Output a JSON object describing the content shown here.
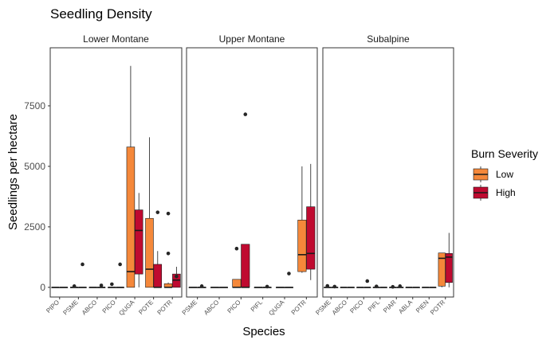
{
  "chart_data": {
    "type": "boxplot",
    "title": "Seedling Density",
    "xlabel": "Species",
    "ylabel": "Seedlings per hectare",
    "ylim": [
      -400,
      9900
    ],
    "yticks": [
      0,
      2500,
      5000,
      7500
    ],
    "ytick_labels": [
      "0",
      "2500",
      "5000",
      "7500"
    ],
    "grid": false,
    "legend": {
      "title": "Burn Severity",
      "position": "right",
      "entries": [
        {
          "label": "Low",
          "color": "#F5883A"
        },
        {
          "label": "High",
          "color": "#BF0A30"
        }
      ]
    },
    "panels": [
      {
        "name": "Lower Montane",
        "categories": [
          "PIPO",
          "PSME",
          "ABCO",
          "PICO",
          "QUGA",
          "POTE",
          "POTR"
        ],
        "boxes": [
          {
            "species": "PIPO",
            "severity": "Low",
            "min": 0,
            "q1": 0,
            "median": 0,
            "q3": 0,
            "max": 0,
            "outliers": []
          },
          {
            "species": "PIPO",
            "severity": "High",
            "min": 0,
            "q1": 0,
            "median": 0,
            "q3": 0,
            "max": 0,
            "outliers": []
          },
          {
            "species": "PSME",
            "severity": "Low",
            "min": 0,
            "q1": 0,
            "median": 0,
            "q3": 0,
            "max": 0,
            "outliers": [
              50
            ]
          },
          {
            "species": "PSME",
            "severity": "High",
            "min": 0,
            "q1": 0,
            "median": 0,
            "q3": 0,
            "max": 0,
            "outliers": [
              950
            ]
          },
          {
            "species": "ABCO",
            "severity": "Low",
            "min": 0,
            "q1": 0,
            "median": 0,
            "q3": 0,
            "max": 0,
            "outliers": []
          },
          {
            "species": "ABCO",
            "severity": "High",
            "min": 0,
            "q1": 0,
            "median": 0,
            "q3": 0,
            "max": 0,
            "outliers": [
              80
            ]
          },
          {
            "species": "PICO",
            "severity": "Low",
            "min": 0,
            "q1": 0,
            "median": 0,
            "q3": 0,
            "max": 0,
            "outliers": [
              130
            ]
          },
          {
            "species": "PICO",
            "severity": "High",
            "min": 0,
            "q1": 0,
            "median": 0,
            "q3": 0,
            "max": 0,
            "outliers": [
              950
            ]
          },
          {
            "species": "QUGA",
            "severity": "Low",
            "min": 0,
            "q1": 0,
            "median": 650,
            "q3": 5800,
            "max": 9150,
            "outliers": []
          },
          {
            "species": "QUGA",
            "severity": "High",
            "min": 0,
            "q1": 550,
            "median": 2350,
            "q3": 3200,
            "max": 3900,
            "outliers": []
          },
          {
            "species": "POTE",
            "severity": "Low",
            "min": 0,
            "q1": 0,
            "median": 750,
            "q3": 2850,
            "max": 6200,
            "outliers": []
          },
          {
            "species": "POTE",
            "severity": "High",
            "min": 0,
            "q1": 0,
            "median": 0,
            "q3": 950,
            "max": 1500,
            "outliers": [
              3100
            ]
          },
          {
            "species": "POTR",
            "severity": "Low",
            "min": 0,
            "q1": 0,
            "median": 0,
            "q3": 150,
            "max": 200,
            "outliers": [
              1400,
              3050
            ]
          },
          {
            "species": "POTR",
            "severity": "High",
            "min": 0,
            "q1": 0,
            "median": 300,
            "q3": 550,
            "max": 850,
            "outliers": [
              450
            ]
          }
        ]
      },
      {
        "name": "Upper Montane",
        "categories": [
          "PSME",
          "ABCO",
          "PICO",
          "PIFL",
          "QUGA",
          "POTR"
        ],
        "boxes": [
          {
            "species": "PSME",
            "severity": "Low",
            "min": 0,
            "q1": 0,
            "median": 0,
            "q3": 0,
            "max": 0,
            "outliers": []
          },
          {
            "species": "PSME",
            "severity": "High",
            "min": 0,
            "q1": 0,
            "median": 0,
            "q3": 0,
            "max": 0,
            "outliers": [
              50
            ]
          },
          {
            "species": "ABCO",
            "severity": "Low",
            "min": 0,
            "q1": 0,
            "median": 0,
            "q3": 0,
            "max": 0,
            "outliers": []
          },
          {
            "species": "ABCO",
            "severity": "High",
            "min": 0,
            "q1": 0,
            "median": 0,
            "q3": 0,
            "max": 0,
            "outliers": []
          },
          {
            "species": "PICO",
            "severity": "Low",
            "min": 0,
            "q1": 0,
            "median": 0,
            "q3": 330,
            "max": 330,
            "outliers": [
              1600
            ]
          },
          {
            "species": "PICO",
            "severity": "High",
            "min": 0,
            "q1": 0,
            "median": 0,
            "q3": 1780,
            "max": 1780,
            "outliers": [
              7150
            ]
          },
          {
            "species": "PIFL",
            "severity": "Low",
            "min": 0,
            "q1": 0,
            "median": 0,
            "q3": 0,
            "max": 0,
            "outliers": []
          },
          {
            "species": "PIFL",
            "severity": "High",
            "min": 0,
            "q1": 0,
            "median": 0,
            "q3": 0,
            "max": 0,
            "outliers": [
              30
            ]
          },
          {
            "species": "QUGA",
            "severity": "Low",
            "min": 0,
            "q1": 0,
            "median": 0,
            "q3": 0,
            "max": 0,
            "outliers": []
          },
          {
            "species": "QUGA",
            "severity": "High",
            "min": 0,
            "q1": 0,
            "median": 0,
            "q3": 0,
            "max": 0,
            "outliers": [
              570
            ]
          },
          {
            "species": "POTR",
            "severity": "Low",
            "min": 600,
            "q1": 650,
            "median": 1350,
            "q3": 2780,
            "max": 5000,
            "outliers": []
          },
          {
            "species": "POTR",
            "severity": "High",
            "min": 300,
            "q1": 750,
            "median": 1400,
            "q3": 3330,
            "max": 5100,
            "outliers": []
          }
        ]
      },
      {
        "name": "Subalpine",
        "categories": [
          "PSME",
          "ABCO",
          "PICO",
          "PIFL",
          "PIAR",
          "ABLA",
          "PIEN",
          "POTR"
        ],
        "boxes": [
          {
            "species": "PSME",
            "severity": "Low",
            "min": 0,
            "q1": 0,
            "median": 0,
            "q3": 0,
            "max": 0,
            "outliers": [
              60
            ]
          },
          {
            "species": "PSME",
            "severity": "High",
            "min": 0,
            "q1": 0,
            "median": 0,
            "q3": 0,
            "max": 0,
            "outliers": [
              30
            ]
          },
          {
            "species": "ABCO",
            "severity": "Low",
            "min": 0,
            "q1": 0,
            "median": 0,
            "q3": 0,
            "max": 0,
            "outliers": []
          },
          {
            "species": "ABCO",
            "severity": "High",
            "min": 0,
            "q1": 0,
            "median": 0,
            "q3": 0,
            "max": 0,
            "outliers": []
          },
          {
            "species": "PICO",
            "severity": "Low",
            "min": 0,
            "q1": 0,
            "median": 0,
            "q3": 0,
            "max": 0,
            "outliers": []
          },
          {
            "species": "PICO",
            "severity": "High",
            "min": 0,
            "q1": 0,
            "median": 0,
            "q3": 0,
            "max": 0,
            "outliers": [
              260
            ]
          },
          {
            "species": "PIFL",
            "severity": "Low",
            "min": 0,
            "q1": 0,
            "median": 0,
            "q3": 0,
            "max": 0,
            "outliers": [
              40
            ]
          },
          {
            "species": "PIFL",
            "severity": "High",
            "min": 0,
            "q1": 0,
            "median": 0,
            "q3": 0,
            "max": 0,
            "outliers": []
          },
          {
            "species": "PIAR",
            "severity": "Low",
            "min": 0,
            "q1": 0,
            "median": 0,
            "q3": 0,
            "max": 0,
            "outliers": [
              20
            ]
          },
          {
            "species": "PIAR",
            "severity": "High",
            "min": 0,
            "q1": 0,
            "median": 0,
            "q3": 0,
            "max": 0,
            "outliers": [
              50
            ]
          },
          {
            "species": "ABLA",
            "severity": "Low",
            "min": 0,
            "q1": 0,
            "median": 0,
            "q3": 0,
            "max": 0,
            "outliers": []
          },
          {
            "species": "ABLA",
            "severity": "High",
            "min": 0,
            "q1": 0,
            "median": 0,
            "q3": 0,
            "max": 0,
            "outliers": []
          },
          {
            "species": "PIEN",
            "severity": "Low",
            "min": 0,
            "q1": 0,
            "median": 0,
            "q3": 0,
            "max": 0,
            "outliers": []
          },
          {
            "species": "PIEN",
            "severity": "High",
            "min": 0,
            "q1": 0,
            "median": 0,
            "q3": 0,
            "max": 0,
            "outliers": []
          },
          {
            "species": "POTR",
            "severity": "Low",
            "min": 0,
            "q1": 50,
            "median": 1200,
            "q3": 1420,
            "max": 1420,
            "outliers": []
          },
          {
            "species": "POTR",
            "severity": "High",
            "min": 0,
            "q1": 200,
            "median": 1250,
            "q3": 1400,
            "max": 2250,
            "outliers": []
          }
        ]
      }
    ]
  }
}
